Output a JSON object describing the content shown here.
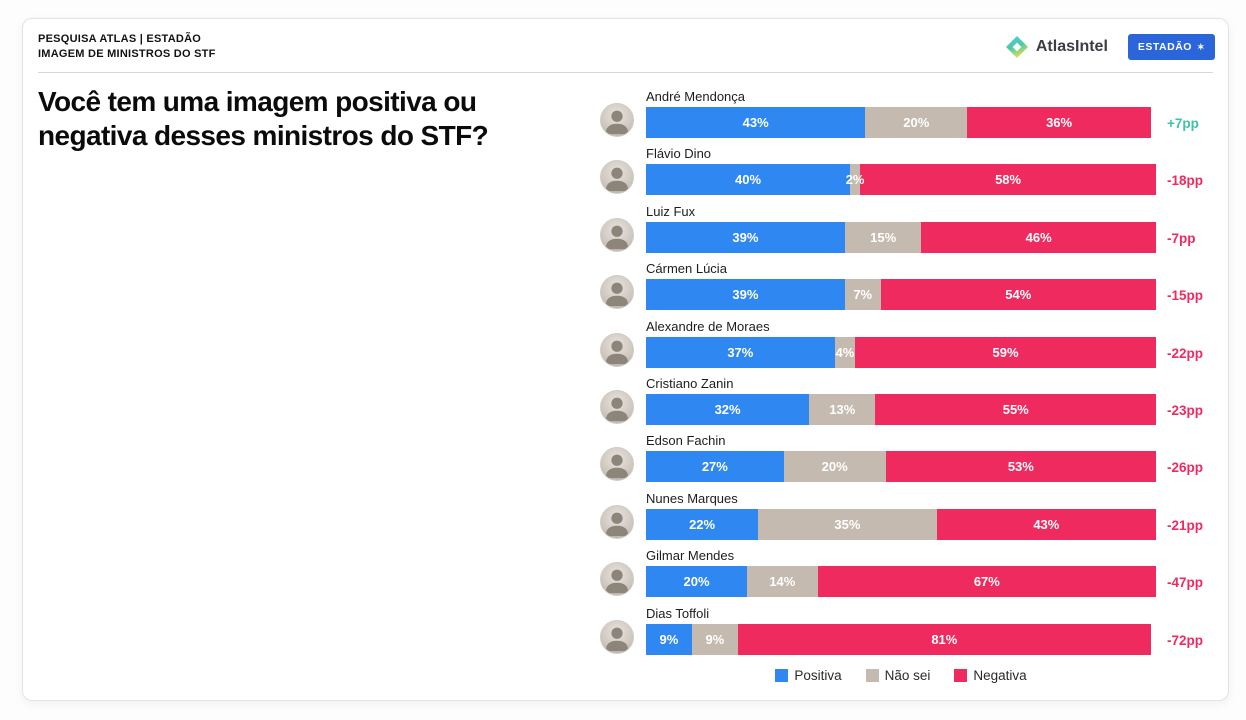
{
  "header": {
    "line1": "PESQUISA ATLAS | ESTADÃO",
    "line2": "IMAGEM DE MINISTROS DO STF",
    "brand_name": "AtlasIntel",
    "badge_label": "ESTADÃO",
    "badge_color": "#2A65D9"
  },
  "question": {
    "line1": "Você tem uma imagem positiva ou",
    "line2": "negativa desses ministros do STF?",
    "full": "Você tem uma imagem positiva ou negativa desses ministros do STF?"
  },
  "chart_data": {
    "type": "bar",
    "orientation": "horizontal",
    "stacked": true,
    "title": "Você tem uma imagem positiva ou negativa desses ministros do STF?",
    "xlabel": "",
    "ylabel": "",
    "xlim": [
      0,
      100
    ],
    "unit": "%",
    "categories": [
      "André Mendonça",
      "Flávio Dino",
      "Luiz Fux",
      "Cármen Lúcia",
      "Alexandre de Moraes",
      "Cristiano Zanin",
      "Edson Fachin",
      "Nunes Marques",
      "Gilmar Mendes",
      "Dias Toffoli"
    ],
    "series": [
      {
        "name": "Positiva",
        "color": "#2F87F2",
        "values": [
          43,
          40,
          39,
          39,
          37,
          32,
          27,
          22,
          20,
          9
        ]
      },
      {
        "name": "Não sei",
        "color": "#C5BAAF",
        "values": [
          20,
          2,
          15,
          7,
          4,
          13,
          20,
          35,
          14,
          9
        ]
      },
      {
        "name": "Negativa",
        "color": "#EF2A5E",
        "values": [
          36,
          58,
          46,
          54,
          59,
          55,
          53,
          43,
          67,
          81
        ]
      }
    ],
    "net_change": [
      "+7pp",
      "-18pp",
      "-7pp",
      "-15pp",
      "-22pp",
      "-23pp",
      "-26pp",
      "-21pp",
      "-47pp",
      "-72pp"
    ],
    "legend_position": "bottom",
    "grid": false
  },
  "legend": [
    {
      "label": "Positiva",
      "color": "#2F87F2"
    },
    {
      "label": "Não sei",
      "color": "#C5BAAF"
    },
    {
      "label": "Negativa",
      "color": "#EF2A5E"
    }
  ],
  "colors": {
    "positive_net": "#3EC3A4",
    "negative_net": "#EF2A5E",
    "card_border": "#e3e3e3",
    "divider": "#d8d8d8"
  }
}
